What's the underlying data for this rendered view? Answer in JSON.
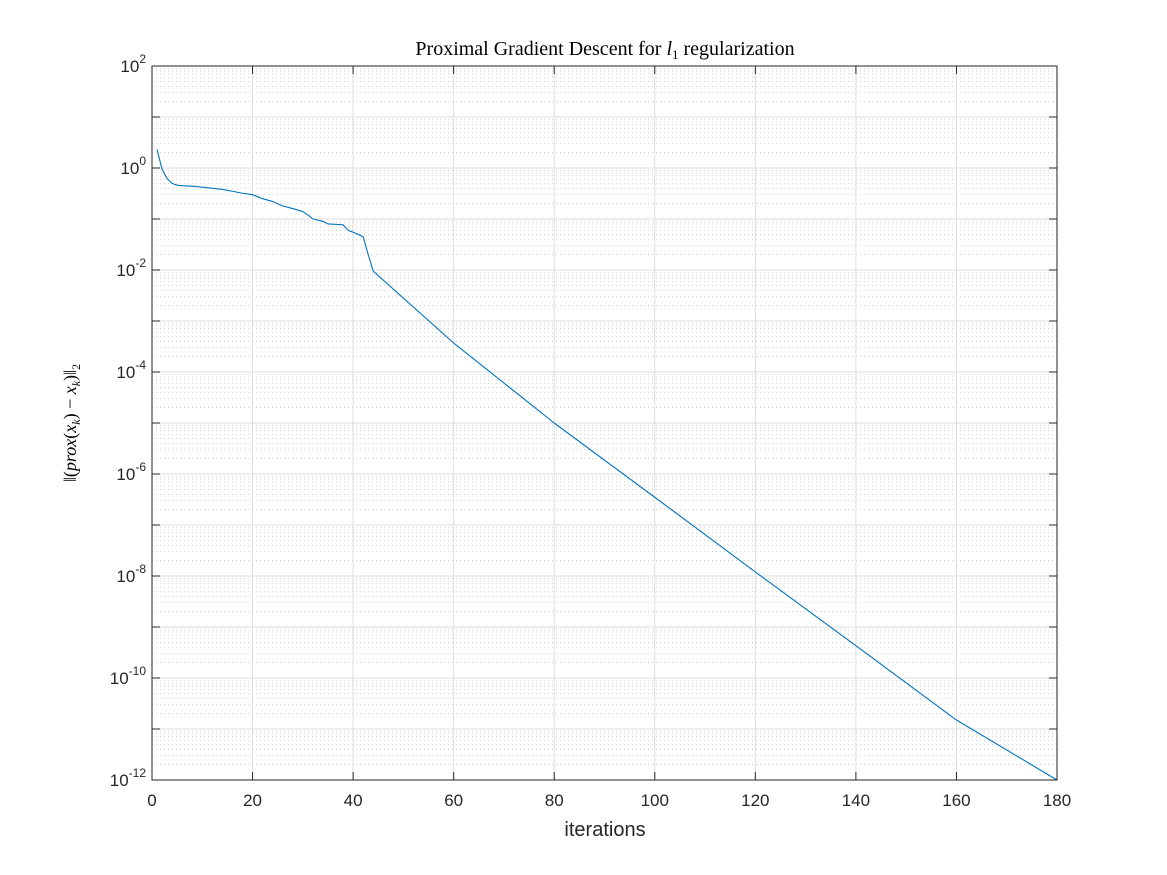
{
  "chart_data": {
    "type": "line",
    "title": {
      "prefix": "Proximal Gradient Descent for ",
      "math_var": "l",
      "math_sub": "1",
      "suffix": " regularization"
    },
    "xlabel": "iterations",
    "ylabel": {
      "part1": "‖(",
      "math1": "prox",
      "part2": "(",
      "math2": "x",
      "sub2": "k",
      "part3": ") − ",
      "math3": "x",
      "sub3": "k",
      "part4": ")‖",
      "sub4": "2"
    },
    "xlim": [
      0,
      180
    ],
    "ylim_exp": [
      -12,
      2
    ],
    "yscale": "log",
    "grid": true,
    "minor_grid": true,
    "line_color": "#0072BD",
    "x_ticks": [
      0,
      20,
      40,
      60,
      80,
      100,
      120,
      140,
      160,
      180
    ],
    "y_ticks": [
      {
        "base": "10",
        "exp": "-12",
        "value": -12
      },
      {
        "base": "10",
        "exp": "-10",
        "value": -10
      },
      {
        "base": "10",
        "exp": "-8",
        "value": -8
      },
      {
        "base": "10",
        "exp": "-6",
        "value": -6
      },
      {
        "base": "10",
        "exp": "-4",
        "value": -4
      },
      {
        "base": "10",
        "exp": "-2",
        "value": -2
      },
      {
        "base": "10",
        "exp": "0",
        "value": 0
      },
      {
        "base": "10",
        "exp": "2",
        "value": 2
      }
    ],
    "series": [
      {
        "x": [
          1,
          2,
          3,
          4,
          5,
          6,
          8,
          10,
          12,
          14,
          16,
          18,
          20,
          22,
          24,
          26,
          28,
          30,
          31,
          32,
          33,
          34,
          35,
          36,
          37,
          38,
          39,
          40,
          41,
          42,
          43,
          44,
          60,
          80,
          100,
          120,
          140,
          160,
          180
        ],
        "y": [
          2.3,
          0.95,
          0.62,
          0.5,
          0.46,
          0.45,
          0.44,
          0.42,
          0.4,
          0.38,
          0.35,
          0.32,
          0.3,
          0.25,
          0.22,
          0.18,
          0.16,
          0.14,
          0.12,
          0.1,
          0.095,
          0.09,
          0.08,
          0.079,
          0.078,
          0.077,
          0.06,
          0.055,
          0.05,
          0.045,
          0.02,
          0.0095,
          0.00037,
          1e-05,
          3.5e-07,
          1.2e-08,
          4.3e-10,
          1.5e-11,
          1e-12
        ]
      }
    ]
  }
}
